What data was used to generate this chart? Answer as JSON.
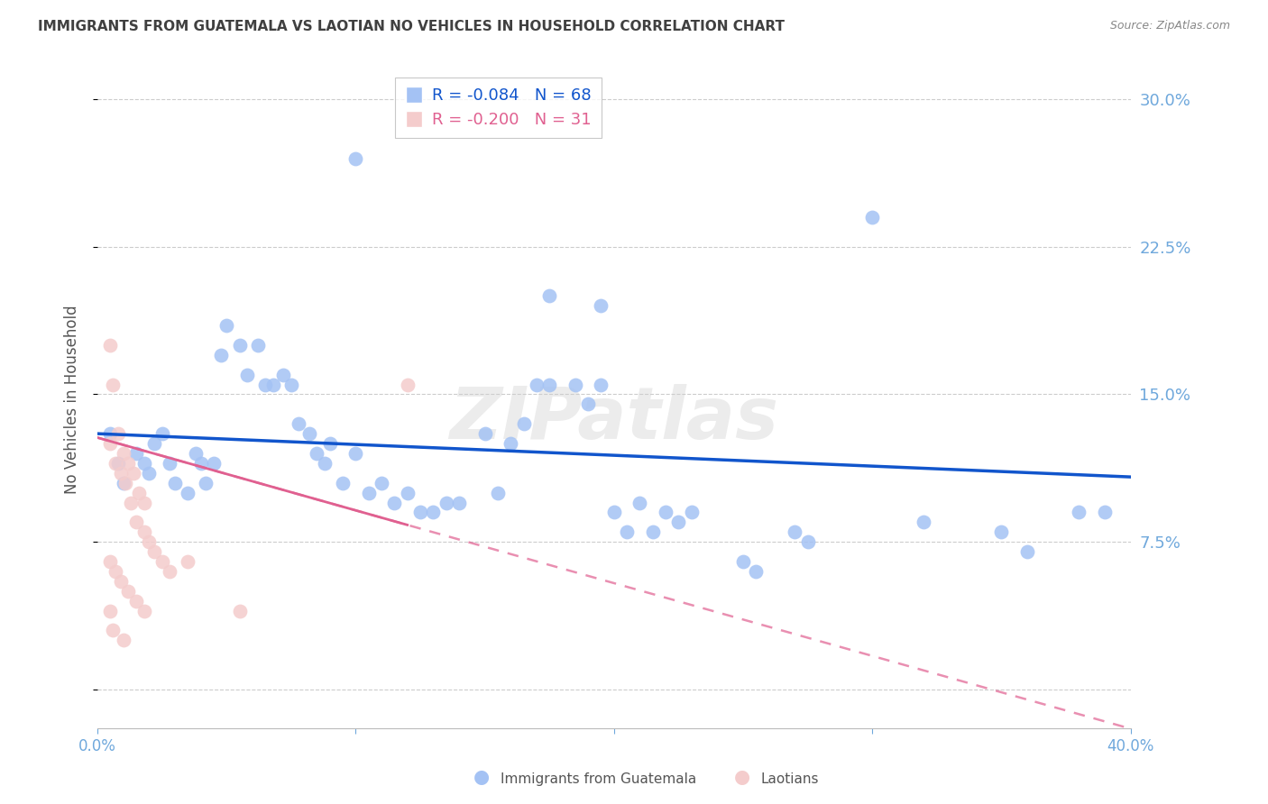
{
  "title": "IMMIGRANTS FROM GUATEMALA VS LAOTIAN NO VEHICLES IN HOUSEHOLD CORRELATION CHART",
  "source": "Source: ZipAtlas.com",
  "ylabel": "No Vehicles in Household",
  "yticks": [
    0.0,
    0.075,
    0.15,
    0.225,
    0.3
  ],
  "ytick_labels": [
    "",
    "7.5%",
    "15.0%",
    "22.5%",
    "30.0%"
  ],
  "xlim": [
    0.0,
    0.4
  ],
  "ylim": [
    -0.02,
    0.315
  ],
  "legend_r1": "R = -0.084",
  "legend_n1": "N = 68",
  "legend_r2": "R = -0.200",
  "legend_n2": "N = 31",
  "color_blue": "#a4c2f4",
  "color_pink": "#f4cccc",
  "trendline_blue": "#1155cc",
  "trendline_pink": "#e06090",
  "blue_scatter": [
    [
      0.005,
      0.13
    ],
    [
      0.008,
      0.115
    ],
    [
      0.01,
      0.105
    ],
    [
      0.015,
      0.12
    ],
    [
      0.018,
      0.115
    ],
    [
      0.02,
      0.11
    ],
    [
      0.022,
      0.125
    ],
    [
      0.025,
      0.13
    ],
    [
      0.028,
      0.115
    ],
    [
      0.03,
      0.105
    ],
    [
      0.035,
      0.1
    ],
    [
      0.038,
      0.12
    ],
    [
      0.04,
      0.115
    ],
    [
      0.042,
      0.105
    ],
    [
      0.045,
      0.115
    ],
    [
      0.048,
      0.17
    ],
    [
      0.05,
      0.185
    ],
    [
      0.055,
      0.175
    ],
    [
      0.058,
      0.16
    ],
    [
      0.062,
      0.175
    ],
    [
      0.065,
      0.155
    ],
    [
      0.068,
      0.155
    ],
    [
      0.072,
      0.16
    ],
    [
      0.075,
      0.155
    ],
    [
      0.078,
      0.135
    ],
    [
      0.082,
      0.13
    ],
    [
      0.085,
      0.12
    ],
    [
      0.088,
      0.115
    ],
    [
      0.09,
      0.125
    ],
    [
      0.095,
      0.105
    ],
    [
      0.1,
      0.12
    ],
    [
      0.105,
      0.1
    ],
    [
      0.11,
      0.105
    ],
    [
      0.115,
      0.095
    ],
    [
      0.12,
      0.1
    ],
    [
      0.125,
      0.09
    ],
    [
      0.13,
      0.09
    ],
    [
      0.135,
      0.095
    ],
    [
      0.14,
      0.095
    ],
    [
      0.15,
      0.13
    ],
    [
      0.155,
      0.1
    ],
    [
      0.16,
      0.125
    ],
    [
      0.165,
      0.135
    ],
    [
      0.17,
      0.155
    ],
    [
      0.175,
      0.155
    ],
    [
      0.185,
      0.155
    ],
    [
      0.19,
      0.145
    ],
    [
      0.195,
      0.155
    ],
    [
      0.2,
      0.09
    ],
    [
      0.205,
      0.08
    ],
    [
      0.21,
      0.095
    ],
    [
      0.215,
      0.08
    ],
    [
      0.22,
      0.09
    ],
    [
      0.225,
      0.085
    ],
    [
      0.23,
      0.09
    ],
    [
      0.1,
      0.27
    ],
    [
      0.175,
      0.2
    ],
    [
      0.195,
      0.195
    ],
    [
      0.3,
      0.24
    ],
    [
      0.25,
      0.065
    ],
    [
      0.255,
      0.06
    ],
    [
      0.27,
      0.08
    ],
    [
      0.275,
      0.075
    ],
    [
      0.35,
      0.08
    ],
    [
      0.36,
      0.07
    ],
    [
      0.38,
      0.09
    ],
    [
      0.32,
      0.085
    ],
    [
      0.39,
      0.09
    ]
  ],
  "pink_scatter": [
    [
      0.005,
      0.175
    ],
    [
      0.006,
      0.155
    ],
    [
      0.008,
      0.13
    ],
    [
      0.01,
      0.12
    ],
    [
      0.012,
      0.115
    ],
    [
      0.014,
      0.11
    ],
    [
      0.016,
      0.1
    ],
    [
      0.018,
      0.095
    ],
    [
      0.005,
      0.125
    ],
    [
      0.007,
      0.115
    ],
    [
      0.009,
      0.11
    ],
    [
      0.011,
      0.105
    ],
    [
      0.013,
      0.095
    ],
    [
      0.015,
      0.085
    ],
    [
      0.018,
      0.08
    ],
    [
      0.02,
      0.075
    ],
    [
      0.022,
      0.07
    ],
    [
      0.025,
      0.065
    ],
    [
      0.028,
      0.06
    ],
    [
      0.005,
      0.065
    ],
    [
      0.007,
      0.06
    ],
    [
      0.009,
      0.055
    ],
    [
      0.012,
      0.05
    ],
    [
      0.015,
      0.045
    ],
    [
      0.018,
      0.04
    ],
    [
      0.006,
      0.03
    ],
    [
      0.01,
      0.025
    ],
    [
      0.035,
      0.065
    ],
    [
      0.055,
      0.04
    ],
    [
      0.12,
      0.155
    ],
    [
      0.005,
      0.04
    ]
  ],
  "watermark": "ZIPatlas",
  "watermark_color": "#d0d0d0",
  "background_color": "#ffffff",
  "grid_color": "#cccccc",
  "title_color": "#404040",
  "axis_label_color": "#6fa8dc"
}
